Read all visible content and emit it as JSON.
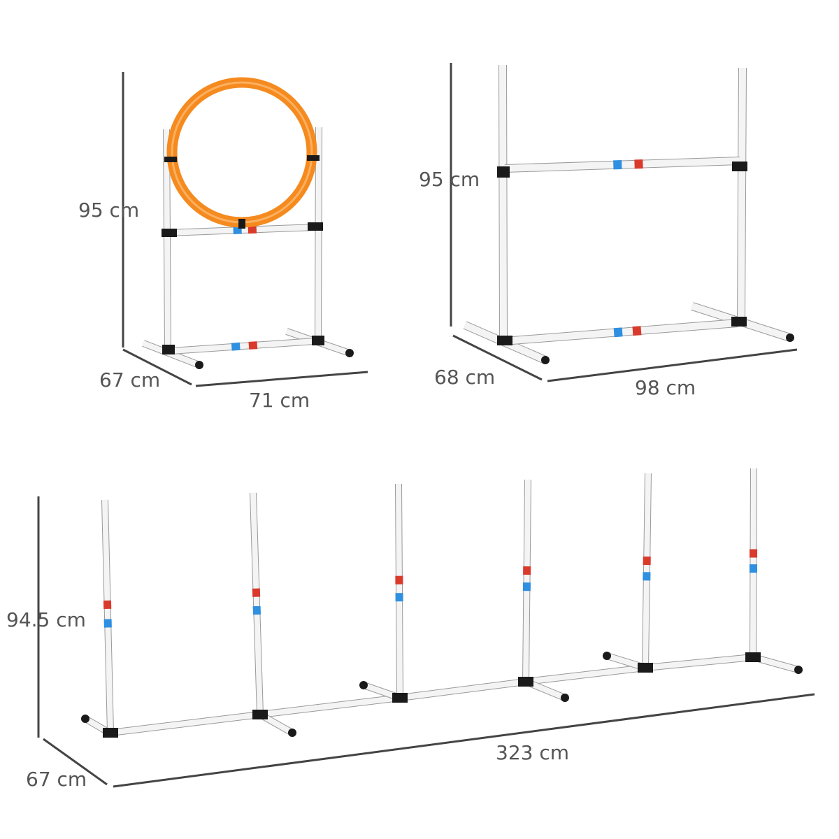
{
  "colors": {
    "hoop": "#f58a1f",
    "pole": "#f4f4f4",
    "pole_outline": "#9a9a9a",
    "connector": "#1a1a1a",
    "stripe_red": "#d93a2b",
    "stripe_blue": "#2f8fe0",
    "dimension_line": "#444444",
    "text": "#555555"
  },
  "hoop_jump": {
    "height": "95 cm",
    "depth": "67 cm",
    "width": "71 cm"
  },
  "high_jump": {
    "height": "95 cm",
    "depth": "68 cm",
    "width": "98 cm"
  },
  "weave_poles": {
    "height": "94.5 cm",
    "depth": "67 cm",
    "length": "323 cm"
  }
}
